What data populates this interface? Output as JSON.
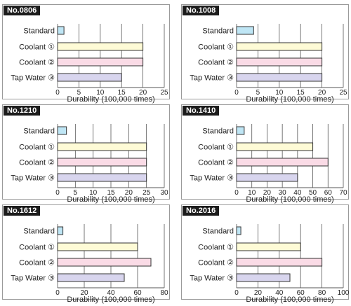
{
  "chart_data": [
    {
      "type": "bar",
      "orientation": "horizontal",
      "title": "No.0806",
      "categories": [
        "Standard",
        "Coolant ①",
        "Coolant ②",
        "Tap Water ③"
      ],
      "values": [
        1.5,
        20,
        20,
        15
      ],
      "xlabel": "Durability (100,000 times)",
      "xlim": [
        0,
        25
      ],
      "xticks": [
        "0",
        "5",
        "10",
        "15",
        "20",
        "25"
      ],
      "grid": true
    },
    {
      "type": "bar",
      "orientation": "horizontal",
      "title": "No.1008",
      "categories": [
        "Standard",
        "Coolant ①",
        "Coolant ②",
        "Tap Water ③"
      ],
      "values": [
        4,
        20,
        20,
        20
      ],
      "xlabel": "Durability (100,000 times)",
      "xlim": [
        0,
        25
      ],
      "xticks": [
        "0",
        "5",
        "10",
        "15",
        "20",
        "25"
      ],
      "grid": true
    },
    {
      "type": "bar",
      "orientation": "horizontal",
      "title": "No.1210",
      "categories": [
        "Standard",
        "Coolant ①",
        "Coolant ②",
        "Tap Water ③"
      ],
      "values": [
        2.5,
        25,
        25,
        25
      ],
      "xlabel": "Durability (100,000 times)",
      "xlim": [
        0,
        30
      ],
      "xticks": [
        "0",
        "5",
        "10",
        "15",
        "20",
        "25",
        "30"
      ],
      "grid": true
    },
    {
      "type": "bar",
      "orientation": "horizontal",
      "title": "No.1410",
      "categories": [
        "Standard",
        "Coolant ①",
        "Coolant ②",
        "Tap Water ③"
      ],
      "values": [
        5,
        50,
        60,
        40
      ],
      "xlabel": "Durability (100,000 times)",
      "xlim": [
        0,
        70
      ],
      "xticks": [
        "0",
        "10",
        "20",
        "30",
        "40",
        "50",
        "60",
        "70"
      ],
      "grid": true
    },
    {
      "type": "bar",
      "orientation": "horizontal",
      "title": "No.1612",
      "categories": [
        "Standard",
        "Coolant ①",
        "Coolant ②",
        "Tap Water ③"
      ],
      "values": [
        4,
        60,
        70,
        50
      ],
      "xlabel": "Durability (100,000 times)",
      "xlim": [
        0,
        80
      ],
      "xticks": [
        "0",
        "20",
        "40",
        "60",
        "80"
      ],
      "grid": true
    },
    {
      "type": "bar",
      "orientation": "horizontal",
      "title": "No.2016",
      "categories": [
        "Standard",
        "Coolant ①",
        "Coolant ②",
        "Tap Water ③"
      ],
      "values": [
        4,
        60,
        80,
        50
      ],
      "xlabel": "Durability (100,000 times)",
      "xlim": [
        0,
        100
      ],
      "xticks": [
        "0",
        "20",
        "40",
        "60",
        "80",
        "100"
      ],
      "grid": true
    }
  ],
  "colors": {
    "bars": [
      "#bfe6f5",
      "#fefbd6",
      "#fadbe6",
      "#d8d5ee"
    ],
    "bar_stroke": "#333333",
    "grid": "#555555",
    "label_bg": "#1c1c1c"
  }
}
